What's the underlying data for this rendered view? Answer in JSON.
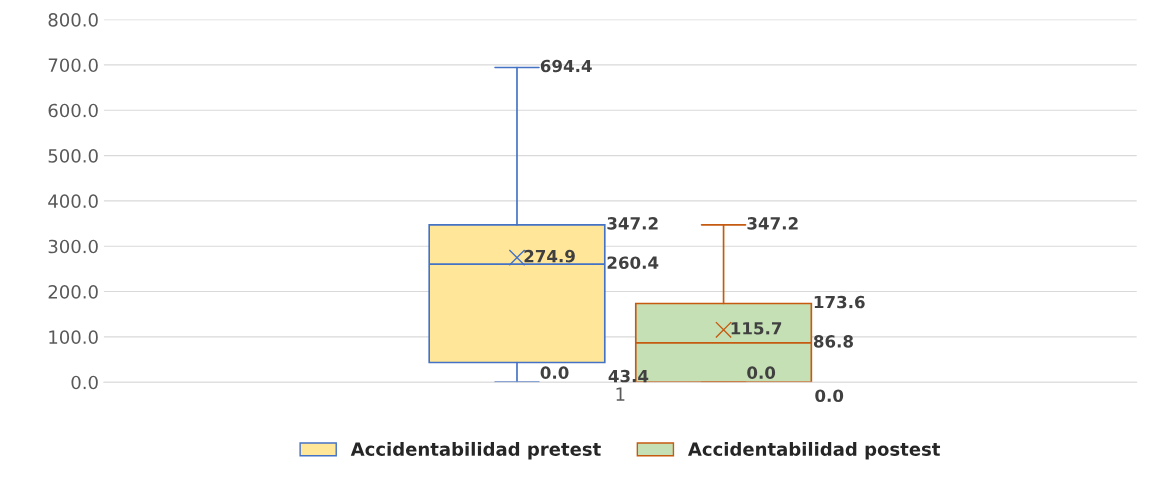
{
  "chart_data": {
    "type": "box",
    "categories": [
      "1"
    ],
    "series": [
      {
        "name": "Accidentabilidad pretest",
        "color": "#4472c4",
        "colors": [
          "#ffe699"
        ],
        "boxes": [
          {
            "low": 0.0,
            "q1": 43.4,
            "median": 260.4,
            "q3": 347.2,
            "high": 694.4,
            "mean": 274.9
          }
        ]
      },
      {
        "name": "Accidentabilidad postest",
        "color": "#c55a11",
        "colors": [
          "#c5e0b4"
        ],
        "boxes": [
          {
            "low": 0.0,
            "q1": 0.0,
            "median": 86.8,
            "q3": 173.6,
            "high": 347.2,
            "mean": 115.7
          }
        ]
      }
    ],
    "annotations": [
      "0.0",
      "43.4",
      "260.4",
      "347.2",
      "694.4",
      "274.9",
      "0.0",
      "0.0",
      "86.8",
      "173.6",
      "347.2",
      "115.7"
    ],
    "ylim": [
      0,
      800
    ],
    "yticks": [
      {
        "value": 0,
        "label": "0.0"
      },
      {
        "value": 100,
        "label": "100.0"
      },
      {
        "value": 200,
        "label": "200.0"
      },
      {
        "value": 300,
        "label": "300.0"
      },
      {
        "value": 400,
        "label": "400.0"
      },
      {
        "value": 500,
        "label": "500.0"
      },
      {
        "value": 600,
        "label": "600.0"
      },
      {
        "value": 700,
        "label": "700.0"
      },
      {
        "value": 800,
        "label": "800.0"
      }
    ],
    "grid": "y",
    "legend": "bottom",
    "marker": "cross"
  }
}
